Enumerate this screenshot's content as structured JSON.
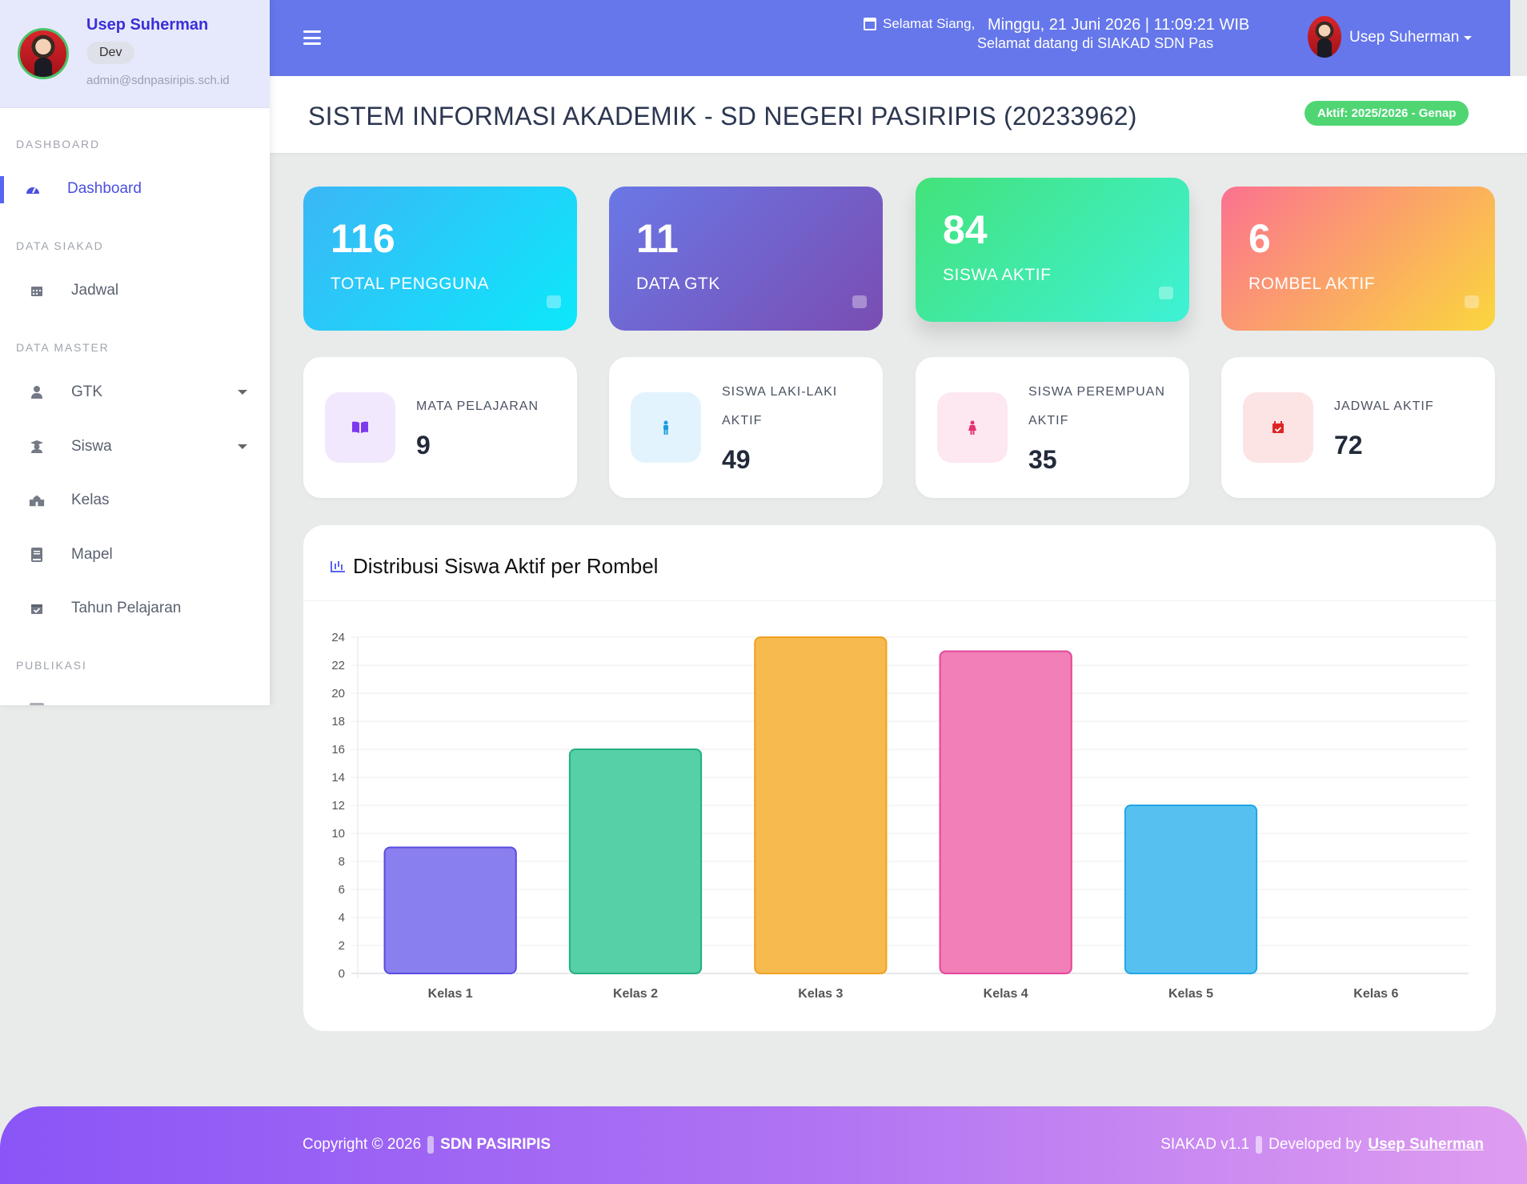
{
  "sidebar": {
    "profile": {
      "name": "Usep Suherman",
      "role": "Dev",
      "email": "admin@sdnpasiripis.sch.id"
    },
    "sections": [
      {
        "label": "DASHBOARD"
      },
      {
        "label": "DATA SIAKAD"
      },
      {
        "label": "DATA MASTER"
      },
      {
        "label": "PUBLIKASI"
      }
    ],
    "items": [
      {
        "label": "Dashboard",
        "icon": "gauge-icon"
      },
      {
        "label": "Jadwal",
        "icon": "calendar-icon"
      },
      {
        "label": "GTK",
        "icon": "user-tie-icon"
      },
      {
        "label": "Siswa",
        "icon": "graduate-icon"
      },
      {
        "label": "Kelas",
        "icon": "school-icon"
      },
      {
        "label": "Mapel",
        "icon": "book-icon"
      },
      {
        "label": "Tahun Pelajaran",
        "icon": "calendar-check-icon"
      }
    ]
  },
  "topbar": {
    "greeting": "Selamat Siang,",
    "datetime": "Minggu, 21 Juni 2026 | 11:09:21 WIB",
    "welcome": "Selamat datang di SIAKAD SDN Pasiripis",
    "user": "Usep Suherman"
  },
  "header": {
    "title": "SISTEM INFORMASI AKADEMIK - SD NEGERI PASIRIPIS (20233962)",
    "badge": "Aktif: 2025/2026 - Genap"
  },
  "stats": [
    {
      "value": "116",
      "label": "TOTAL PENGGUNA",
      "icon": "users-icon",
      "gradient": [
        "#3bb6f6",
        "#0ce8fb"
      ]
    },
    {
      "value": "11",
      "label": "DATA GTK",
      "icon": "user-icon",
      "gradient": [
        "#6a78e6",
        "#7a4db2"
      ]
    },
    {
      "value": "84",
      "label": "SISWA AKTIF",
      "icon": "graduate-icon",
      "gradient": [
        "#43e27a",
        "#3ef2d6"
      ]
    },
    {
      "value": "6",
      "label": "ROMBEL AKTIF",
      "icon": "school-icon",
      "gradient": [
        "#fb7290",
        "#fbd73e"
      ]
    }
  ],
  "mini_stats": [
    {
      "label": "MATA PELAJARAN",
      "value": "9",
      "icon": "book-open-icon",
      "bg": "#f1e8fd",
      "color": "#7c3aed"
    },
    {
      "label": "SISWA LAKI-LAKI AKTIF",
      "value": "49",
      "icon": "male-icon",
      "bg": "#e3f3fd",
      "color": "#1a9de0"
    },
    {
      "label": "SISWA PEREMPUAN AKTIF",
      "value": "35",
      "icon": "female-icon",
      "bg": "#fde7f1",
      "color": "#e5336f"
    },
    {
      "label": "JADWAL AKTIF",
      "value": "72",
      "icon": "calendar-check-icon",
      "bg": "#fde4e4",
      "color": "#e02424"
    }
  ],
  "chart": {
    "title": "Distribusi Siswa Aktif per Rombel"
  },
  "chart_data": {
    "type": "bar",
    "categories": [
      "Kelas 1",
      "Kelas 2",
      "Kelas 3",
      "Kelas 4",
      "Kelas 5",
      "Kelas 6"
    ],
    "values": [
      9,
      16,
      24,
      23,
      12,
      0
    ],
    "colors": [
      {
        "fill": "#8a7fee",
        "stroke": "#5a4de0"
      },
      {
        "fill": "#56d0a6",
        "stroke": "#22b07c"
      },
      {
        "fill": "#f6ba4f",
        "stroke": "#f0a020"
      },
      {
        "fill": "#f27fb7",
        "stroke": "#e2479a"
      },
      {
        "fill": "#56c1f0",
        "stroke": "#22a6e2"
      },
      {
        "fill": "#b0b0b0",
        "stroke": "#909090"
      }
    ],
    "ylim": [
      0,
      24
    ],
    "ystep": 2,
    "grid": true,
    "legend": "none"
  },
  "footer": {
    "copyright": "Copyright © 2026",
    "school": "SDN PASIRIPIS",
    "version": "SIAKAD v1.1",
    "developed_by": "Developed by",
    "developer": "Usep Suherman"
  }
}
